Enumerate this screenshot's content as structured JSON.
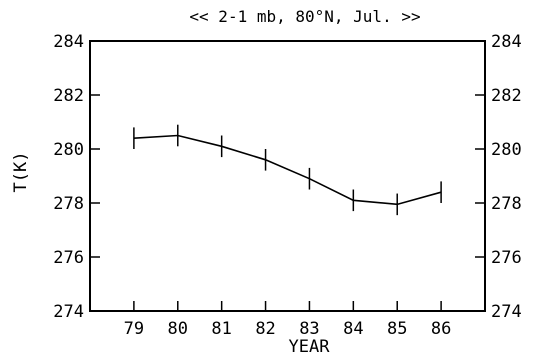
{
  "chart_data": {
    "type": "line",
    "title": "<< 2-1 mb, 80°N, Jul. >>",
    "xlabel": "YEAR",
    "ylabel": "T(K)",
    "categories": [
      "79",
      "80",
      "81",
      "82",
      "83",
      "84",
      "85",
      "86"
    ],
    "x": [
      79,
      80,
      81,
      82,
      83,
      84,
      85,
      86
    ],
    "series": [
      {
        "values": [
          280.4,
          280.5,
          280.1,
          279.6,
          278.9,
          278.1,
          277.95,
          278.4
        ],
        "error": [
          0.4,
          0.4,
          0.4,
          0.4,
          0.4,
          0.4,
          0.4,
          0.4
        ]
      }
    ],
    "xlim": [
      78,
      87
    ],
    "ylim": [
      274,
      284
    ],
    "yticks": [
      274,
      276,
      278,
      280,
      282,
      284
    ],
    "ytick_labels_left": [
      "274",
      "276",
      "278",
      "280",
      "282",
      "284"
    ],
    "ytick_labels_right": [
      "274",
      "276",
      "278",
      "280",
      "282",
      "284"
    ],
    "grid": false,
    "legend": "none",
    "colors": {
      "line": "#000000",
      "axes": "#000000",
      "background": "#ffffff"
    }
  }
}
